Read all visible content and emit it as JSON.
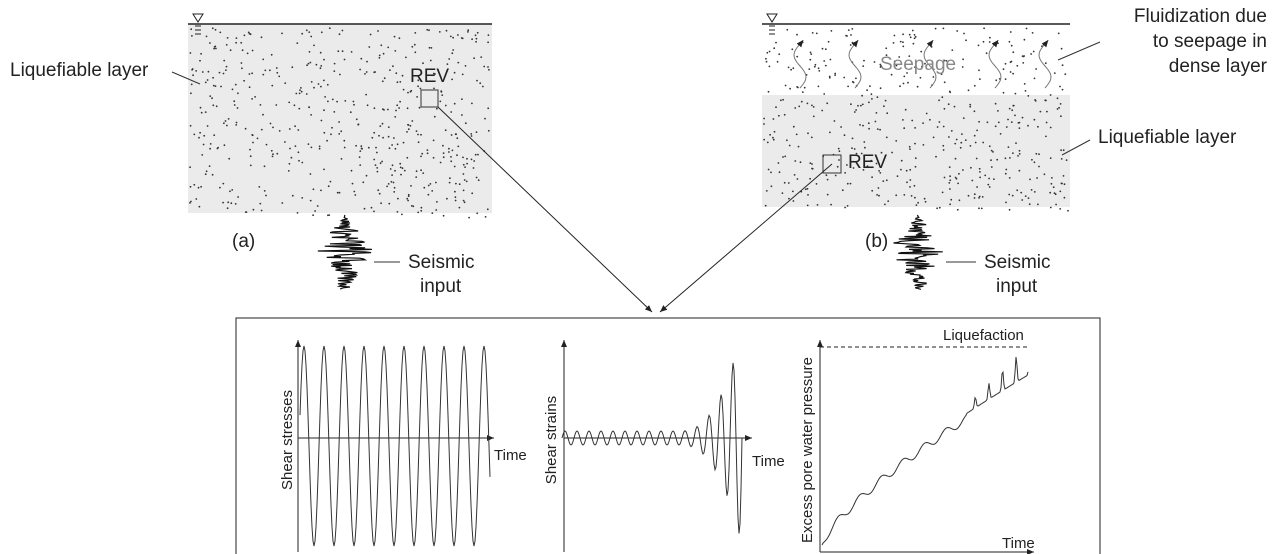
{
  "panel_a": {
    "label": "(a)",
    "layer": "Liquefiable layer",
    "rev": "REV",
    "input": [
      "Seismic",
      "input"
    ]
  },
  "panel_b": {
    "label": "(b)",
    "top_layer": [
      "Fluidization due",
      "to seepage in",
      "dense layer"
    ],
    "seepage": "Seepage",
    "layer": "Liquefiable layer",
    "rev": "REV",
    "input": [
      "Seismic",
      "input"
    ]
  },
  "plots": [
    {
      "y_label": "Shear stresses",
      "x_label": "Time"
    },
    {
      "y_label": "Shear strains",
      "x_label": "Time"
    },
    {
      "y_label": "Excess pore water pressure",
      "x_label": "Time",
      "threshold": "Liquefaction"
    }
  ]
}
